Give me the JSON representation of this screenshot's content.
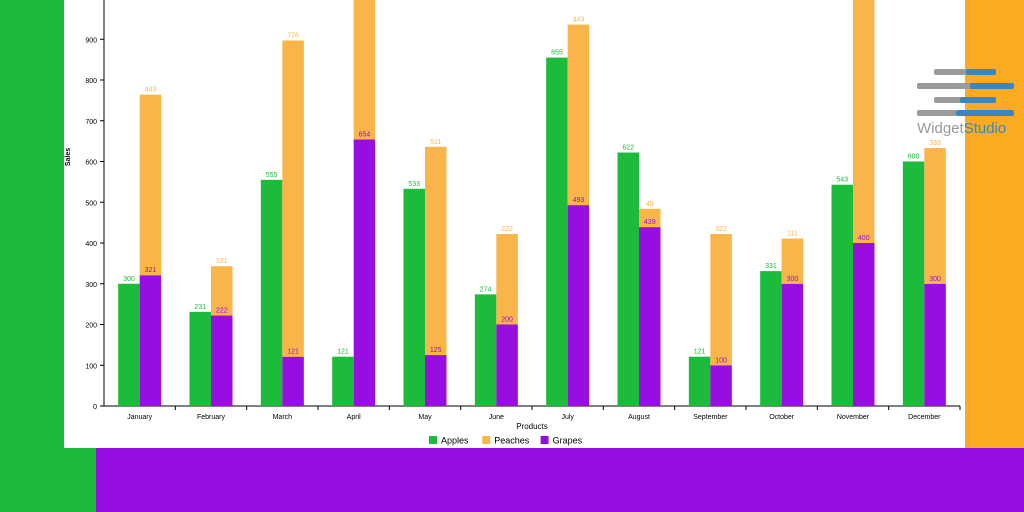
{
  "chart_data": {
    "type": "bar",
    "xlabel": "Products",
    "ylabel": "Sales",
    "ylim": [
      0,
      1000
    ],
    "yticks": [
      0,
      100,
      200,
      300,
      400,
      500,
      600,
      700,
      800,
      900
    ],
    "categories": [
      "January",
      "February",
      "March",
      "April",
      "May",
      "June",
      "July",
      "August",
      "September",
      "October",
      "November",
      "December"
    ],
    "series": [
      {
        "name": "Apples",
        "color": "#1dbb3c",
        "values": [
          300,
          231,
          555,
          121,
          533,
          274,
          855,
          622,
          121,
          331,
          543,
          600
        ]
      },
      {
        "name": "Peaches",
        "color": "#f9b54a",
        "values": [
          443,
          121,
          776,
          null,
          511,
          222,
          443,
          45,
          322,
          111,
          null,
          333
        ]
      },
      {
        "name": "Grapes",
        "color": "#980ddf",
        "values": [
          321,
          222,
          121,
          654,
          125,
          200,
          493,
          439,
          100,
          300,
          400,
          300
        ]
      }
    ],
    "peaches_stacked_on_grapes": true,
    "legend_position": "bottom"
  },
  "logo": {
    "word1": "Widget",
    "word2": "Studio"
  }
}
